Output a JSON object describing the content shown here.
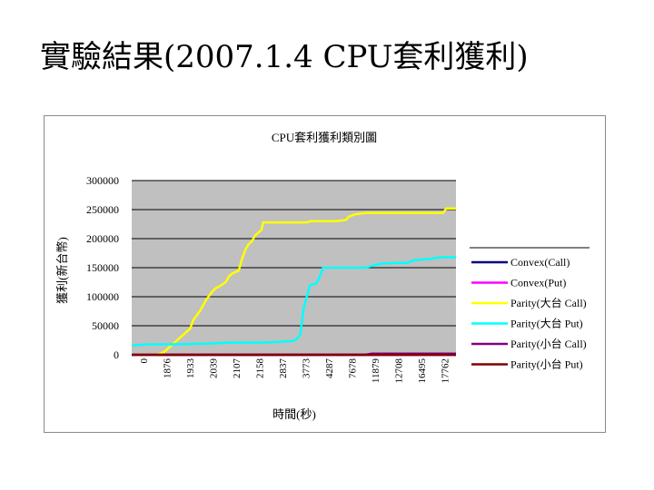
{
  "slide": {
    "title": "實驗結果(2007.1.4 CPU套利獲利)"
  },
  "colors": {
    "plot_background": "#c0c0c0",
    "gridline": "#000000",
    "convex_call": "#000080",
    "convex_put": "#ff00ff",
    "parity_big_call": "#ffff00",
    "parity_big_put": "#00ffff",
    "parity_small_call": "#800080",
    "parity_small_put": "#800000"
  },
  "chart_data": {
    "type": "line",
    "title": "CPU套利獲利類別圖",
    "xlabel": "時間(秒)",
    "ylabel": "獲利(新台幣)",
    "ylim": [
      0,
      300000
    ],
    "yticks": [
      0,
      50000,
      100000,
      150000,
      200000,
      250000,
      300000
    ],
    "ytick_labels": [
      "0",
      "50000",
      "100000",
      "150000",
      "200000",
      "250000",
      "300000"
    ],
    "xtick_labels": [
      "0",
      "1876",
      "1933",
      "2039",
      "2107",
      "2158",
      "2837",
      "3773",
      "4287",
      "7678",
      "11879",
      "12708",
      "16495",
      "17762"
    ],
    "grid": true,
    "legend_position": "right",
    "x_range": [
      0,
      100
    ],
    "series": [
      {
        "name": "Convex(Call)",
        "color": "#000080",
        "points": [
          [
            0,
            0
          ],
          [
            100,
            0
          ]
        ]
      },
      {
        "name": "Convex(Put)",
        "color": "#ff00ff",
        "points": [
          [
            0,
            0
          ],
          [
            100,
            0
          ]
        ]
      },
      {
        "name": "Parity(大台 Call)",
        "color": "#ffff00",
        "points": [
          [
            0,
            0
          ],
          [
            8,
            0
          ],
          [
            10,
            5000
          ],
          [
            12,
            15000
          ],
          [
            14,
            25000
          ],
          [
            16,
            35000
          ],
          [
            18,
            45000
          ],
          [
            19,
            60000
          ],
          [
            21,
            75000
          ],
          [
            22,
            85000
          ],
          [
            23,
            95000
          ],
          [
            25,
            110000
          ],
          [
            26,
            115000
          ],
          [
            27,
            118000
          ],
          [
            29,
            125000
          ],
          [
            30,
            135000
          ],
          [
            31,
            140000
          ],
          [
            33,
            145000
          ],
          [
            34,
            165000
          ],
          [
            35,
            180000
          ],
          [
            36,
            190000
          ],
          [
            37,
            195000
          ],
          [
            38,
            205000
          ],
          [
            39,
            210000
          ],
          [
            40,
            215000
          ],
          [
            40.5,
            228000
          ],
          [
            44,
            228000
          ],
          [
            48,
            228000
          ],
          [
            54,
            228000
          ],
          [
            55,
            230000
          ],
          [
            63,
            230000
          ],
          [
            66,
            232000
          ],
          [
            67,
            238000
          ],
          [
            69,
            242000
          ],
          [
            72,
            244000
          ],
          [
            82,
            244000
          ],
          [
            96,
            244000
          ],
          [
            97,
            252000
          ],
          [
            100,
            252000
          ]
        ]
      },
      {
        "name": "Parity(大台 Put)",
        "color": "#00ffff",
        "points": [
          [
            0,
            16000
          ],
          [
            5,
            18000
          ],
          [
            13,
            18000
          ],
          [
            23,
            19000
          ],
          [
            30,
            21000
          ],
          [
            40,
            21000
          ],
          [
            45,
            22000
          ],
          [
            50,
            24000
          ],
          [
            51,
            28000
          ],
          [
            52,
            35000
          ],
          [
            53,
            80000
          ],
          [
            54,
            100000
          ],
          [
            55,
            120000
          ],
          [
            57,
            123000
          ],
          [
            58,
            135000
          ],
          [
            59,
            150000
          ],
          [
            66,
            150000
          ],
          [
            72,
            150000
          ],
          [
            74,
            153000
          ],
          [
            77,
            157000
          ],
          [
            81,
            158000
          ],
          [
            85,
            158000
          ],
          [
            87,
            163000
          ],
          [
            92,
            165000
          ],
          [
            95,
            168000
          ],
          [
            100,
            168000
          ]
        ]
      },
      {
        "name": "Parity(小台 Call)",
        "color": "#800080",
        "points": [
          [
            0,
            0
          ],
          [
            72,
            0
          ],
          [
            74,
            2000
          ],
          [
            100,
            2000
          ]
        ]
      },
      {
        "name": "Parity(小台 Put)",
        "color": "#800000",
        "points": [
          [
            0,
            0
          ],
          [
            100,
            0
          ]
        ]
      }
    ]
  }
}
